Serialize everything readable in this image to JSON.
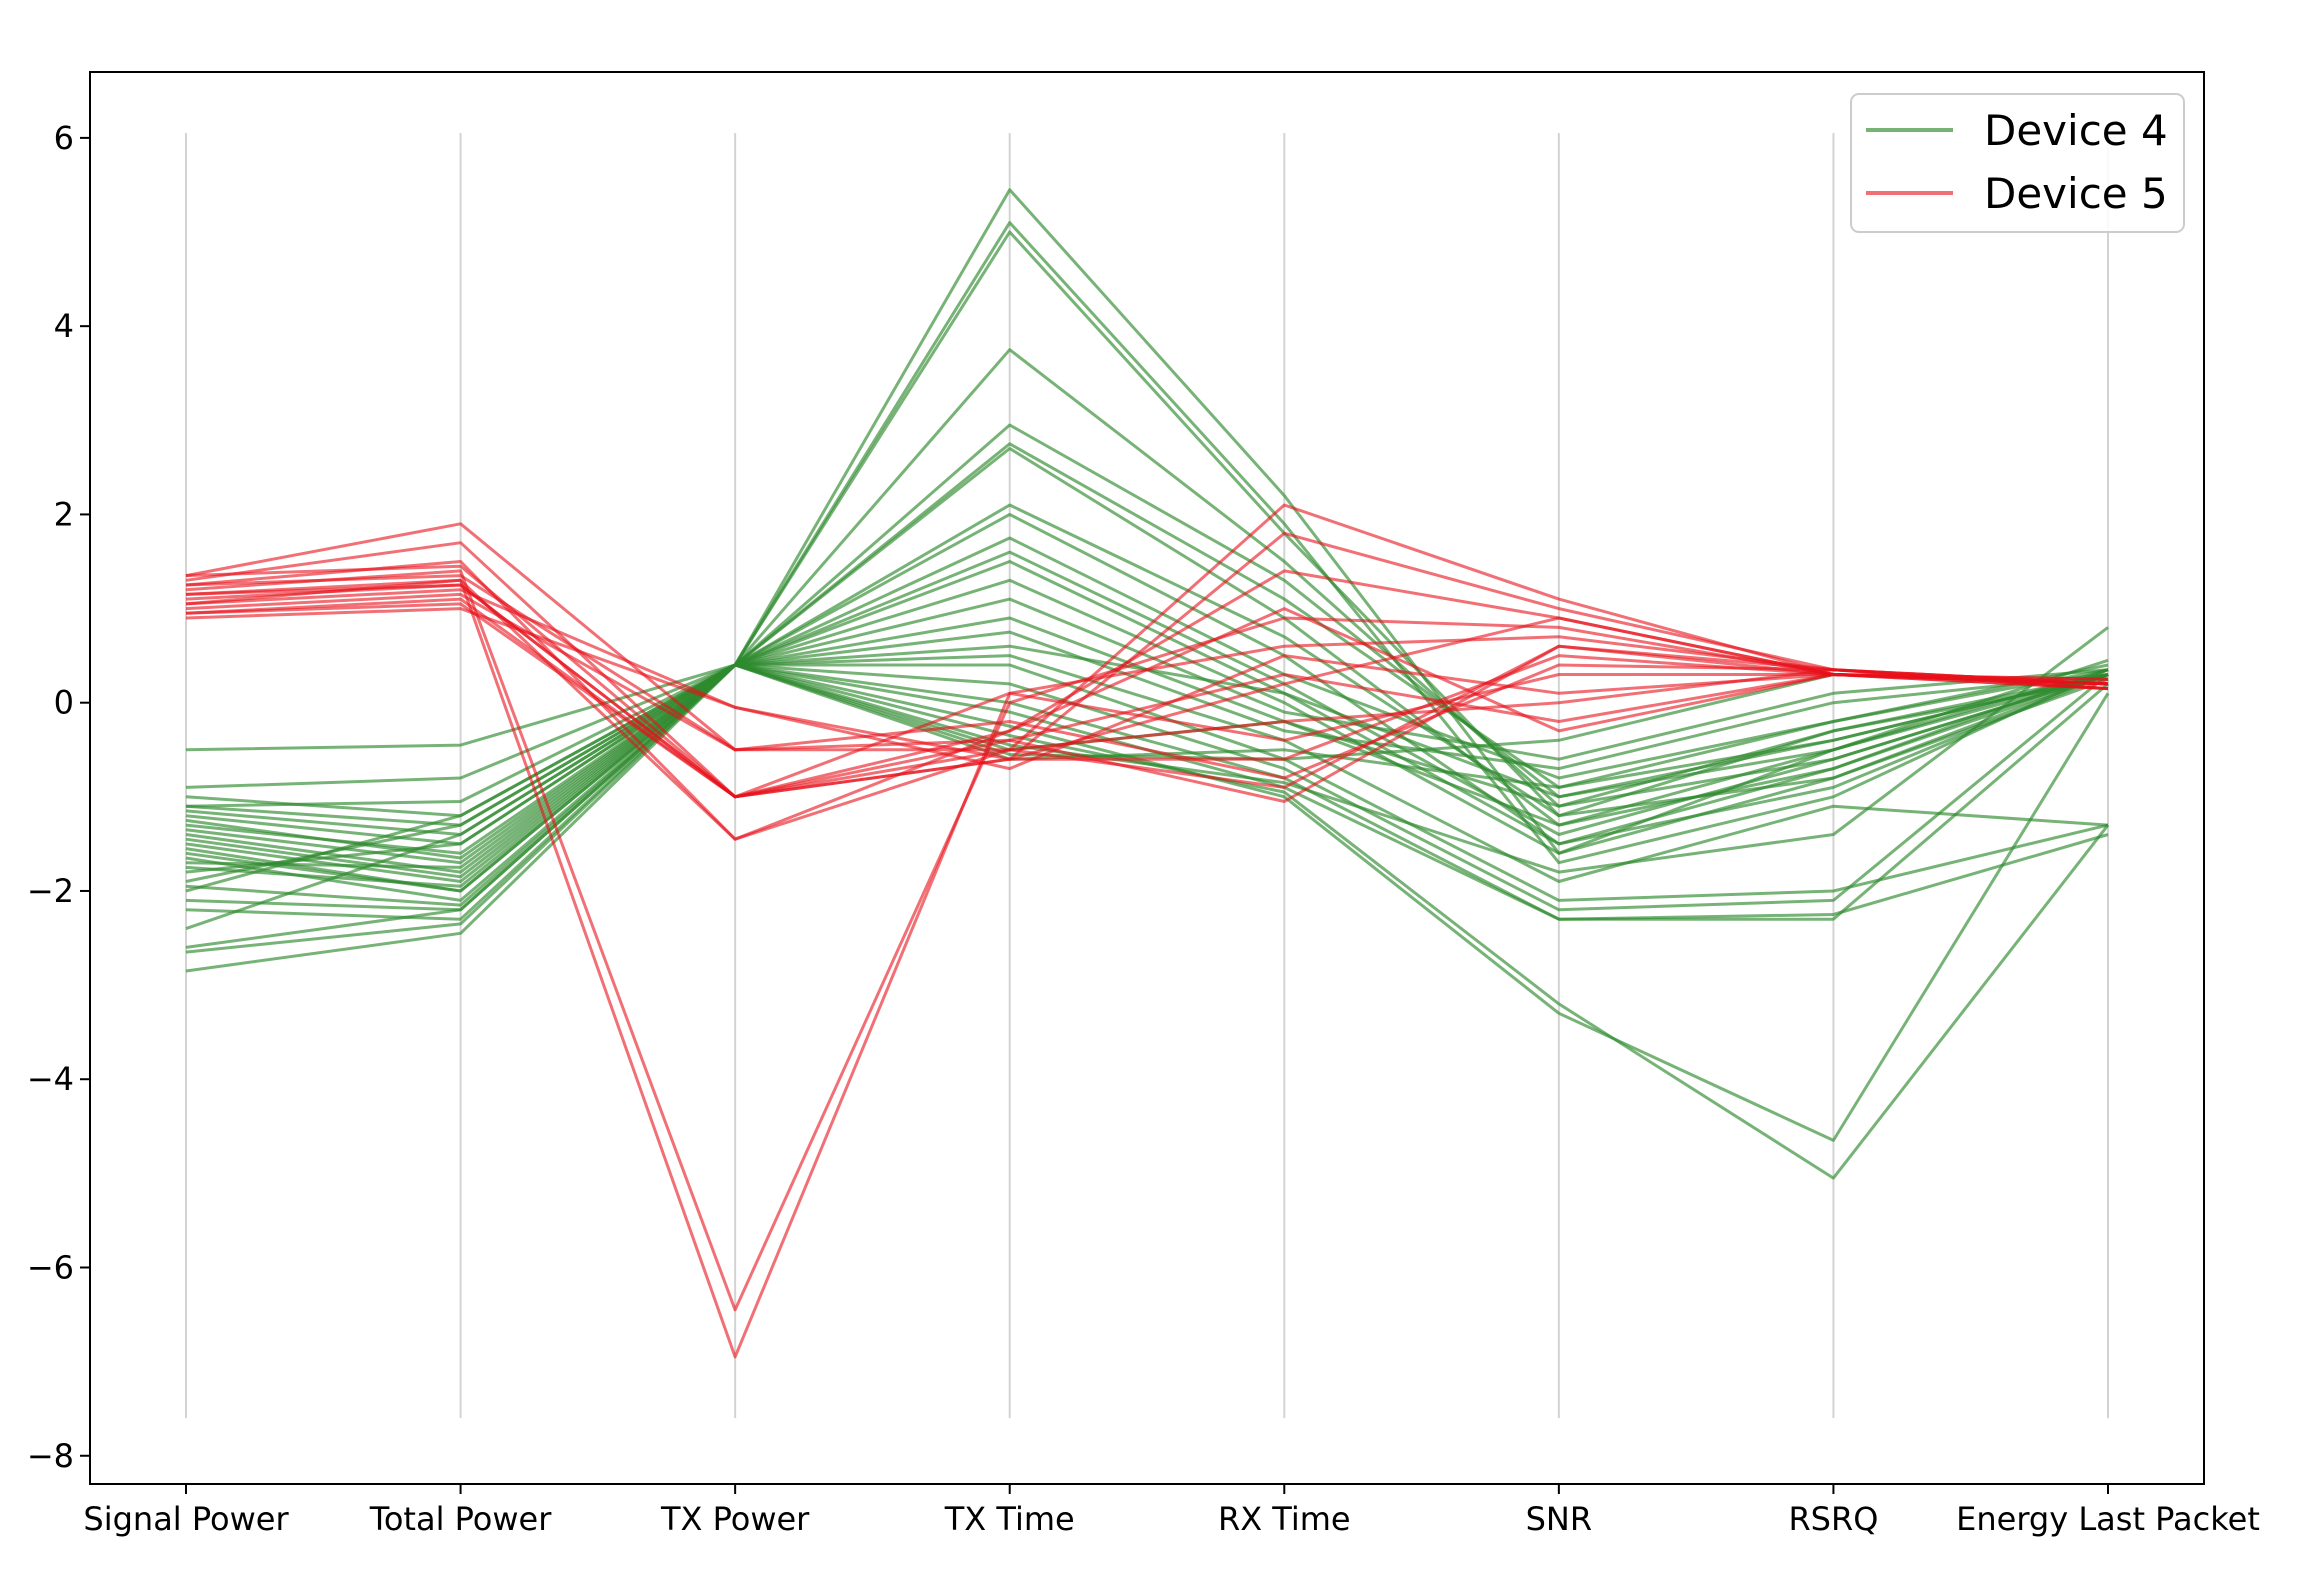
{
  "chart_data": {
    "type": "parallel-coordinates",
    "title": "",
    "xlabel": "",
    "ylabel": "",
    "axes": [
      "Signal Power",
      "Total Power",
      "TX Power",
      "TX Time",
      "RX Time",
      "SNR",
      "RSRQ",
      "Energy Last Packet"
    ],
    "ylim": [
      -8.3,
      6.7
    ],
    "yticks": [
      6,
      4,
      2,
      0,
      -2,
      -4,
      -6,
      -8
    ],
    "ytick_labels": [
      "6",
      "4",
      "2",
      "0",
      "−2",
      "−4",
      "−6",
      "−8"
    ],
    "axis_line_range": [
      -7.6,
      6.05
    ],
    "grid": false,
    "legend": {
      "position": "top-right",
      "entries": [
        "Device 4",
        "Device 5"
      ]
    },
    "series": [
      {
        "name": "Device 4",
        "color": "#2e8b2e",
        "opacity": 0.65,
        "lines": [
          [
            -0.5,
            -0.45,
            0.4,
            5.45,
            2.2,
            -1.6,
            -0.5,
            0.45
          ],
          [
            -0.9,
            -0.8,
            0.4,
            5.1,
            1.9,
            -1.7,
            -1.0,
            0.35
          ],
          [
            -1.0,
            -1.2,
            0.4,
            5.0,
            1.8,
            -1.2,
            -0.8,
            0.3
          ],
          [
            -1.1,
            -1.3,
            0.4,
            3.75,
            1.5,
            -1.1,
            -0.6,
            0.3
          ],
          [
            -1.15,
            -1.4,
            0.4,
            2.95,
            1.3,
            -1.0,
            -0.5,
            0.35
          ],
          [
            -1.2,
            -1.5,
            0.4,
            2.75,
            1.1,
            -0.9,
            -0.4,
            0.3
          ],
          [
            -1.3,
            -1.6,
            0.4,
            2.7,
            0.9,
            -1.3,
            -0.7,
            0.3
          ],
          [
            -1.35,
            -1.7,
            0.4,
            2.1,
            0.7,
            -1.2,
            -0.3,
            0.25
          ],
          [
            -1.4,
            -1.8,
            0.4,
            2.0,
            0.5,
            -1.5,
            -0.9,
            0.3
          ],
          [
            -1.5,
            -1.9,
            0.4,
            1.75,
            0.3,
            -0.8,
            -0.2,
            0.35
          ],
          [
            -1.6,
            -2.0,
            0.4,
            1.6,
            0.2,
            -1.4,
            -0.6,
            0.3
          ],
          [
            -1.65,
            -2.1,
            0.4,
            1.5,
            0.1,
            -1.0,
            -0.4,
            0.3
          ],
          [
            -1.7,
            -1.75,
            0.4,
            1.3,
            0.0,
            -1.6,
            -0.8,
            0.25
          ],
          [
            -1.8,
            -1.5,
            0.4,
            1.1,
            -0.1,
            -0.6,
            0.1,
            0.35
          ],
          [
            -1.9,
            -1.3,
            0.4,
            0.9,
            -0.2,
            -1.3,
            -0.5,
            0.3
          ],
          [
            -2.0,
            -1.2,
            0.4,
            0.75,
            -0.3,
            -0.7,
            0.0,
            0.3
          ],
          [
            -2.1,
            -2.2,
            0.4,
            0.5,
            -0.4,
            -1.9,
            -1.1,
            -1.3
          ],
          [
            -2.2,
            -2.3,
            0.4,
            0.4,
            -0.6,
            -2.1,
            -2.0,
            -1.3
          ],
          [
            -2.4,
            -1.4,
            0.4,
            0.2,
            -0.7,
            -2.2,
            -2.1,
            0.3
          ],
          [
            -2.6,
            -2.2,
            0.4,
            0.0,
            -0.8,
            -2.3,
            -2.3,
            0.2
          ],
          [
            -2.65,
            -2.35,
            0.4,
            -0.1,
            -0.9,
            -2.3,
            -2.25,
            -1.4
          ],
          [
            -2.85,
            -2.45,
            0.4,
            -0.25,
            -1.0,
            -3.3,
            -4.65,
            0.1
          ],
          [
            -1.45,
            -1.85,
            0.4,
            -0.35,
            -0.95,
            -3.2,
            -5.05,
            -1.3
          ],
          [
            -1.55,
            -2.0,
            0.4,
            -0.45,
            -0.85,
            -1.8,
            -1.4,
            0.8
          ],
          [
            -1.1,
            -1.05,
            0.4,
            -0.55,
            -0.6,
            -0.4,
            0.3,
            0.2
          ],
          [
            -1.25,
            -1.65,
            0.4,
            -0.6,
            -0.5,
            -0.9,
            -0.2,
            0.4
          ],
          [
            -1.75,
            -1.95,
            0.4,
            -0.5,
            -0.2,
            -1.1,
            -0.3,
            0.3
          ],
          [
            -1.95,
            -2.15,
            0.4,
            0.6,
            0.1,
            -1.5,
            -0.7,
            0.35
          ]
        ]
      },
      {
        "name": "Device 5",
        "color": "#e8101a",
        "opacity": 0.6,
        "lines": [
          [
            1.35,
            1.9,
            -0.5,
            -0.5,
            2.1,
            1.1,
            0.3,
            0.2
          ],
          [
            1.3,
            1.7,
            -1.0,
            -0.6,
            1.8,
            1.0,
            0.35,
            0.15
          ],
          [
            1.25,
            1.5,
            -1.45,
            -0.3,
            1.4,
            0.9,
            0.3,
            0.2
          ],
          [
            1.2,
            1.4,
            -6.45,
            0.0,
            0.9,
            0.8,
            0.3,
            0.2
          ],
          [
            1.15,
            1.3,
            -6.95,
            0.1,
            0.6,
            0.7,
            0.35,
            0.15
          ],
          [
            1.1,
            1.25,
            -1.0,
            -0.4,
            -1.05,
            0.6,
            0.3,
            0.2
          ],
          [
            1.05,
            1.2,
            -0.05,
            -0.6,
            -0.6,
            0.5,
            0.3,
            0.25
          ],
          [
            1.0,
            1.15,
            -0.5,
            -0.2,
            -0.8,
            0.4,
            0.35,
            0.2
          ],
          [
            0.95,
            1.1,
            -1.0,
            0.1,
            -0.4,
            0.3,
            0.3,
            0.2
          ],
          [
            0.9,
            1.0,
            -0.05,
            -0.7,
            0.5,
            0.1,
            0.3,
            0.15
          ],
          [
            1.35,
            1.45,
            -1.0,
            -0.5,
            -0.2,
            0.0,
            0.35,
            0.2
          ],
          [
            1.25,
            1.35,
            -0.5,
            -0.4,
            0.3,
            -0.2,
            0.3,
            0.2
          ],
          [
            1.15,
            1.25,
            -1.0,
            -0.3,
            1.0,
            -0.3,
            0.3,
            0.25
          ],
          [
            1.05,
            1.3,
            -1.45,
            -0.5,
            -0.9,
            0.6,
            0.35,
            0.2
          ],
          [
            0.95,
            1.05,
            -1.0,
            -0.6,
            0.2,
            0.9,
            0.3,
            0.15
          ]
        ]
      }
    ]
  }
}
